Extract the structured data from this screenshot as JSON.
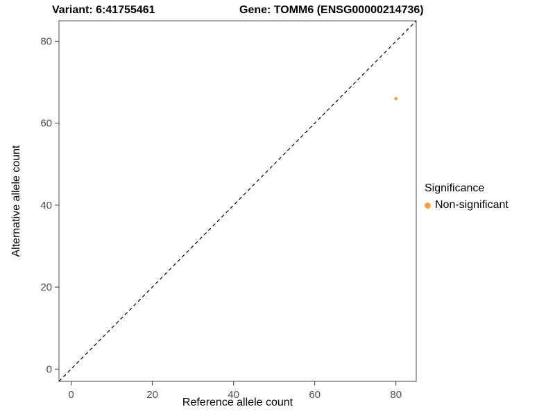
{
  "page": {
    "background": "#FFFFFF"
  },
  "titles": {
    "variant": "Variant: 6:41755461",
    "gene": "Gene: TOMM6 (ENSG00000214736)"
  },
  "chart_data": {
    "type": "scatter",
    "title_left": "Variant: 6:41755461",
    "title_right": "Gene: TOMM6 (ENSG00000214736)",
    "xlabel": "Reference allele count",
    "ylabel": "Alternative allele count",
    "xlim": [
      -3,
      85
    ],
    "ylim": [
      -3,
      85
    ],
    "xticks": [
      0,
      20,
      40,
      60,
      80
    ],
    "yticks": [
      0,
      20,
      40,
      60,
      80
    ],
    "grid": false,
    "panel_border_color": "#4D4D4D",
    "tick_color": "#333333",
    "tick_label_color": "#4D4D4D",
    "tick_label_size": 15,
    "identity_line": {
      "style": "dashed",
      "slope": 1,
      "intercept": 0,
      "color": "#000000"
    },
    "series": [
      {
        "name": "Non-significant",
        "color": "#F9A242",
        "point_radius": 2.5,
        "points": [
          [
            80,
            66
          ]
        ]
      }
    ],
    "legend": {
      "position": "right",
      "title": "Significance",
      "entries": [
        {
          "label": "Non-significant",
          "color": "#F9A242"
        }
      ]
    }
  }
}
